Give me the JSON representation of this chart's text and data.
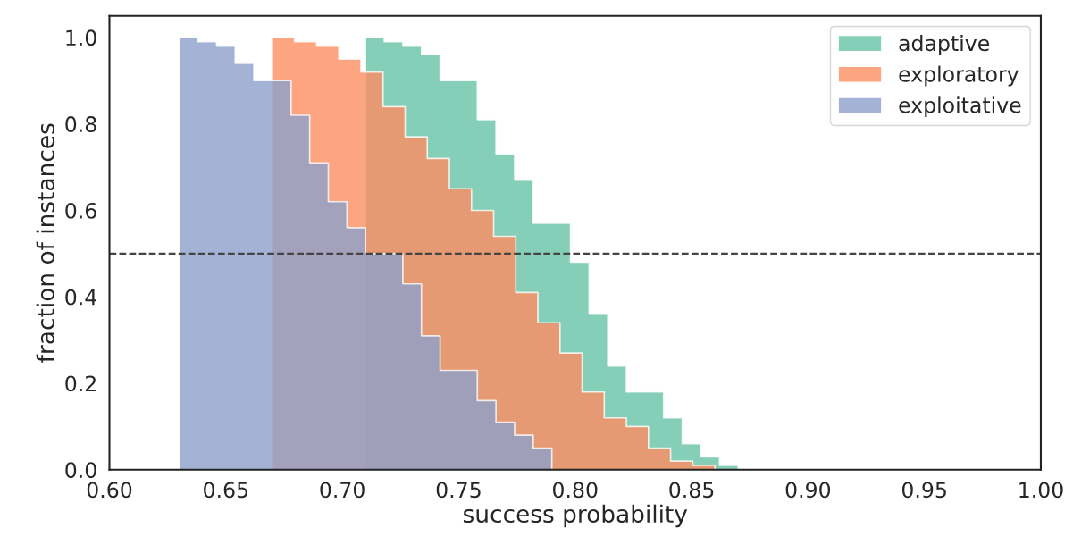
{
  "chart_data": {
    "type": "area",
    "xlabel": "success probability",
    "ylabel": "fraction of instances",
    "xlim": [
      0.6,
      1.0
    ],
    "xticks": [
      {
        "value": 0.6,
        "label": "0.60"
      },
      {
        "value": 0.65,
        "label": "0.65"
      },
      {
        "value": 0.7,
        "label": "0.70"
      },
      {
        "value": 0.75,
        "label": "0.75"
      },
      {
        "value": 0.8,
        "label": "0.80"
      },
      {
        "value": 0.85,
        "label": "0.85"
      },
      {
        "value": 0.9,
        "label": "0.90"
      },
      {
        "value": 0.95,
        "label": "0.95"
      },
      {
        "value": 1.0,
        "label": "1.00"
      }
    ],
    "ylim": [
      0,
      1.05
    ],
    "yticks": [
      {
        "value": 0,
        "label": "0.0"
      },
      {
        "value": 0.2,
        "label": "0.2"
      },
      {
        "value": 0.4,
        "label": "0.4"
      },
      {
        "value": 0.6,
        "label": "0.6"
      },
      {
        "value": 0.8,
        "label": "0.8"
      },
      {
        "value": 1.0,
        "label": "1.0"
      }
    ],
    "grid": false,
    "legend": "top right",
    "ref_lines": [
      {
        "axis": "y",
        "value": 0.5,
        "color": "#444444",
        "line_style": "dashed"
      }
    ],
    "series": [
      {
        "name": "adaptive",
        "color": "#66c2a5",
        "x": [
          0.71,
          0.718,
          0.726,
          0.734,
          0.742,
          0.75,
          0.758,
          0.766,
          0.774,
          0.782,
          0.79,
          0.798,
          0.806,
          0.814,
          0.822,
          0.83,
          0.838,
          0.846,
          0.854,
          0.862,
          0.87
        ],
        "values": [
          1.0,
          0.99,
          0.98,
          0.96,
          0.9,
          0.9,
          0.81,
          0.73,
          0.67,
          0.57,
          0.57,
          0.48,
          0.36,
          0.24,
          0.18,
          0.18,
          0.12,
          0.06,
          0.03,
          0.01,
          0.01
        ]
      },
      {
        "name": "exploratory",
        "color": "#fc8d62",
        "x": [
          0.67,
          0.6795,
          0.689,
          0.6985,
          0.708,
          0.7175,
          0.727,
          0.7365,
          0.746,
          0.7555,
          0.765,
          0.7745,
          0.784,
          0.7935,
          0.803,
          0.8125,
          0.822,
          0.8315,
          0.841,
          0.8505,
          0.86
        ],
        "values": [
          1.0,
          0.99,
          0.98,
          0.95,
          0.92,
          0.84,
          0.77,
          0.72,
          0.65,
          0.6,
          0.54,
          0.41,
          0.34,
          0.27,
          0.18,
          0.12,
          0.1,
          0.05,
          0.02,
          0.01,
          0.01
        ]
      },
      {
        "name": "exploitative",
        "color": "#8da0cb",
        "x": [
          0.63,
          0.638,
          0.646,
          0.654,
          0.662,
          0.67,
          0.678,
          0.686,
          0.694,
          0.702,
          0.71,
          0.718,
          0.726,
          0.734,
          0.742,
          0.75,
          0.758,
          0.766,
          0.774,
          0.782,
          0.79
        ],
        "values": [
          1.0,
          0.99,
          0.98,
          0.94,
          0.9,
          0.9,
          0.82,
          0.71,
          0.62,
          0.56,
          0.5,
          0.5,
          0.43,
          0.31,
          0.23,
          0.23,
          0.16,
          0.11,
          0.08,
          0.05,
          0.05
        ]
      }
    ]
  }
}
